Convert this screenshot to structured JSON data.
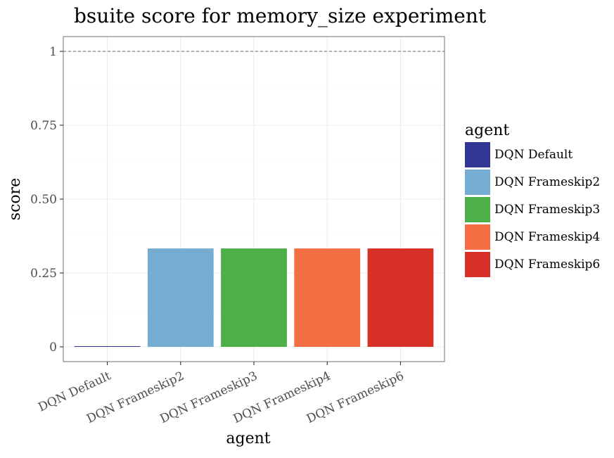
{
  "chart_data": {
    "type": "bar",
    "title": "bsuite score for memory_size experiment",
    "xlabel": "agent",
    "ylabel": "score",
    "categories": [
      "DQN Default",
      "DQN Frameskip2",
      "DQN Frameskip3",
      "DQN Frameskip4",
      "DQN Frameskip6"
    ],
    "values": [
      0.0,
      0.333,
      0.333,
      0.333,
      0.333
    ],
    "colors": [
      "#313695",
      "#74add1",
      "#4daf4a",
      "#f46d43",
      "#d73027"
    ],
    "ylim": [
      -0.05,
      1.05
    ],
    "yticks": [
      0,
      0.25,
      0.5,
      0.75,
      1
    ],
    "ytick_labels": [
      "0",
      "0.25",
      "0.50",
      "0.75",
      "1"
    ],
    "reference_line": 1,
    "grid": true,
    "legend": {
      "title": "agent",
      "position": "right",
      "entries": [
        "DQN Default",
        "DQN Frameskip2",
        "DQN Frameskip3",
        "DQN Frameskip4",
        "DQN Frameskip6"
      ]
    }
  }
}
